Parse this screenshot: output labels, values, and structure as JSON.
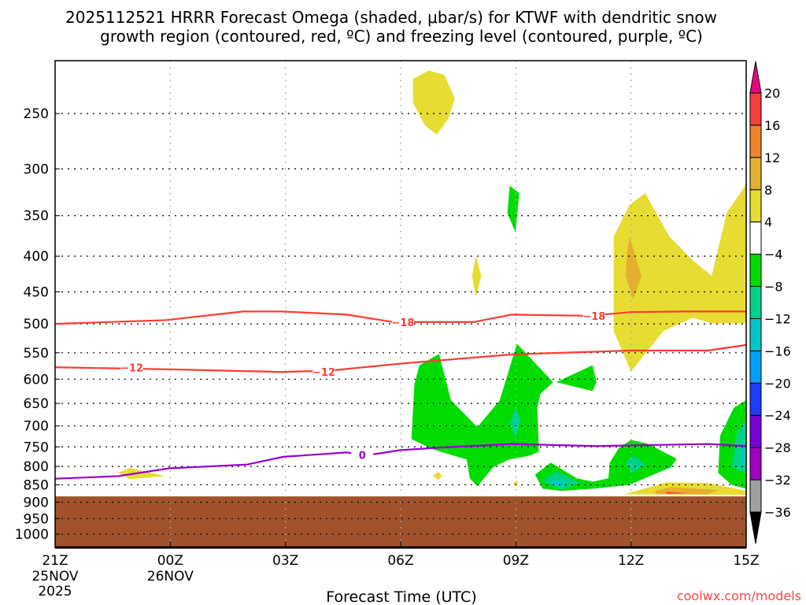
{
  "chart_data": {
    "type": "heatmap",
    "title_lines": [
      "2025112521 HRRR Forecast Omega (shaded, μbar/s) for KTWF with dendritic snow",
      "growth region (contoured, red, ºC) and freezing level (contoured, purple, ºC)"
    ],
    "xlabel": "Forecast Time (UTC)",
    "x_units": "hours since 21Z 25NOV 2025",
    "xlim": [
      0,
      18
    ],
    "x_ticks": [
      {
        "h": 0,
        "label": "21Z",
        "sub": [
          "25NOV",
          "2025"
        ]
      },
      {
        "h": 3,
        "label": "00Z",
        "sub": [
          "26NOV"
        ]
      },
      {
        "h": 6,
        "label": "03Z",
        "sub": []
      },
      {
        "h": 9,
        "label": "06Z",
        "sub": []
      },
      {
        "h": 12,
        "label": "09Z",
        "sub": []
      },
      {
        "h": 15,
        "label": "12Z",
        "sub": []
      },
      {
        "h": 18,
        "label": "15Z",
        "sub": []
      }
    ],
    "y_units": "hPa",
    "ylim": [
      210,
      1045
    ],
    "y_scale": "log",
    "y_ticks": [
      250,
      300,
      350,
      400,
      450,
      500,
      550,
      600,
      650,
      700,
      750,
      800,
      850,
      900,
      950,
      1000
    ],
    "grid": true,
    "surface_pressure": 883,
    "colorbar": {
      "levels": [
        "-36",
        "-32",
        "-28",
        "-24",
        "-20",
        "-16",
        "-12",
        "-8",
        "-4",
        "4",
        "8",
        "12",
        "16",
        "20"
      ],
      "colors": [
        "#a0a0a0",
        "#a000c0",
        "#7800d8",
        "#1e3cff",
        "#00a0ff",
        "#00c8c8",
        "#00d28c",
        "#00dc00",
        "#ffffff",
        "#e6dc32",
        "#e6af2d",
        "#f08228",
        "#fa3c3c"
      ],
      "under_color": "#000000",
      "over_color": "#f00082"
    },
    "shaded_regions": [
      {
        "value_range": "4 to 8",
        "color": "#e6dc32",
        "points": [
          [
            9.32,
            223
          ],
          [
            9.73,
            217
          ],
          [
            10.14,
            220
          ],
          [
            10.41,
            238
          ],
          [
            10.25,
            254
          ],
          [
            9.94,
            268
          ],
          [
            9.63,
            260
          ],
          [
            9.32,
            241
          ]
        ]
      },
      {
        "value_range": "4 to 8",
        "color": "#e6dc32",
        "points": [
          [
            14.55,
            375
          ],
          [
            14.96,
            338
          ],
          [
            15.37,
            325
          ],
          [
            16.0,
            375
          ],
          [
            16.6,
            405
          ],
          [
            17.1,
            427
          ],
          [
            17.5,
            346
          ],
          [
            18,
            316
          ],
          [
            18,
            499
          ],
          [
            17.1,
            499
          ],
          [
            16.6,
            490
          ],
          [
            15.84,
            512
          ],
          [
            15.0,
            585
          ],
          [
            14.55,
            512
          ]
        ]
      },
      {
        "value_range": "8 to 12",
        "color": "#e6af2d",
        "points": [
          [
            14.9,
            394
          ],
          [
            14.96,
            375
          ],
          [
            15.27,
            427
          ],
          [
            15.06,
            461
          ],
          [
            14.86,
            427
          ]
        ]
      },
      {
        "value_range": "4 to 8",
        "color": "#e6dc32",
        "points": [
          [
            10.96,
            400
          ],
          [
            11.1,
            427
          ],
          [
            10.96,
            458
          ],
          [
            10.86,
            427
          ]
        ]
      },
      {
        "value_range": "-8 to -4",
        "color": "#00dc00",
        "points": [
          [
            11.84,
            317
          ],
          [
            12.09,
            325
          ],
          [
            11.99,
            370
          ],
          [
            11.78,
            347
          ]
        ]
      },
      {
        "value_range": "-8 to -4",
        "color": "#00dc00",
        "points": [
          [
            9.28,
            731
          ],
          [
            9.36,
            609
          ],
          [
            9.49,
            573
          ],
          [
            10.0,
            552
          ],
          [
            10.31,
            643
          ],
          [
            11.0,
            703
          ],
          [
            11.58,
            643
          ],
          [
            12.03,
            534
          ],
          [
            12.97,
            606
          ],
          [
            12.64,
            630
          ],
          [
            12.56,
            659
          ],
          [
            12.6,
            762
          ],
          [
            12.36,
            772
          ],
          [
            11.82,
            782
          ],
          [
            11.41,
            802
          ],
          [
            11.0,
            854
          ],
          [
            10.8,
            832
          ],
          [
            10.72,
            782
          ],
          [
            9.84,
            756
          ]
        ]
      },
      {
        "value_range": "-8 to -4",
        "color": "#00dc00",
        "points": [
          [
            13.05,
            606
          ],
          [
            14.0,
            573
          ],
          [
            14.1,
            606
          ],
          [
            14.0,
            624
          ]
        ]
      },
      {
        "value_range": "-12 to -8",
        "color": "#00d28c",
        "points": [
          [
            11.99,
            659
          ],
          [
            12.13,
            687
          ],
          [
            11.99,
            727
          ],
          [
            11.84,
            694
          ]
        ]
      },
      {
        "value_range": "-8 to -4",
        "color": "#00dc00",
        "points": [
          [
            12.5,
            822
          ],
          [
            12.91,
            790
          ],
          [
            13.59,
            832
          ],
          [
            14.0,
            841
          ],
          [
            14.41,
            832
          ],
          [
            14.45,
            790
          ],
          [
            14.69,
            752
          ],
          [
            15.0,
            733
          ],
          [
            15.43,
            742
          ],
          [
            16.19,
            780
          ],
          [
            16.04,
            802
          ],
          [
            14.96,
            850
          ],
          [
            14.0,
            861
          ],
          [
            13.18,
            867
          ],
          [
            12.7,
            861
          ]
        ]
      },
      {
        "value_range": "-12 to -8",
        "color": "#00d28c",
        "points": [
          [
            12.7,
            838
          ],
          [
            13.05,
            813
          ],
          [
            13.67,
            845
          ],
          [
            13.18,
            865
          ]
        ]
      },
      {
        "value_range": "-16 to -12",
        "color": "#00c8c8",
        "points": [
          [
            12.85,
            845
          ],
          [
            13.1,
            836
          ],
          [
            13.3,
            848
          ],
          [
            13.05,
            856
          ]
        ]
      },
      {
        "value_range": "-12 to -8",
        "color": "#00d28c",
        "points": [
          [
            14.86,
            790
          ],
          [
            15.06,
            772
          ],
          [
            15.37,
            796
          ],
          [
            15.02,
            817
          ]
        ]
      },
      {
        "value_range": "-8 to -4",
        "color": "#00dc00",
        "points": [
          [
            17.27,
            817
          ],
          [
            17.32,
            723
          ],
          [
            17.68,
            659
          ],
          [
            18,
            643
          ],
          [
            18,
            861
          ],
          [
            17.62,
            850
          ]
        ]
      },
      {
        "value_range": "-12 to -8",
        "color": "#00d28c",
        "points": [
          [
            17.62,
            802
          ],
          [
            17.77,
            712
          ],
          [
            18,
            687
          ],
          [
            18,
            817
          ]
        ]
      },
      {
        "value_range": "-16 to -12",
        "color": "#00c8c8",
        "points": [
          [
            17.9,
            760
          ],
          [
            18,
            740
          ],
          [
            18,
            800
          ],
          [
            17.9,
            795
          ]
        ]
      },
      {
        "value_range": "4 to 8",
        "color": "#e6dc32",
        "points": [
          [
            14.82,
            877
          ],
          [
            15.92,
            843
          ],
          [
            17.01,
            845
          ],
          [
            18,
            867
          ],
          [
            18,
            879
          ]
        ]
      },
      {
        "value_range": "8 to 12",
        "color": "#e6af2d",
        "points": [
          [
            15.64,
            867
          ],
          [
            16.04,
            856
          ],
          [
            17.27,
            865
          ],
          [
            17.0,
            877
          ],
          [
            15.64,
            877
          ]
        ]
      },
      {
        "value_range": "16 to 20",
        "color": "#fa3c3c",
        "points": [
          [
            15.92,
            870
          ],
          [
            16.54,
            874
          ],
          [
            15.92,
            875
          ]
        ]
      },
      {
        "value_range": "4 to 8",
        "color": "#e6dc32",
        "points": [
          [
            9.84,
            824
          ],
          [
            9.98,
            815
          ],
          [
            10.08,
            824
          ],
          [
            9.98,
            837
          ]
        ]
      },
      {
        "value_range": "4 to 8",
        "color": "#e6dc32",
        "points": [
          [
            11.93,
            845
          ],
          [
            12.05,
            838
          ],
          [
            12.03,
            856
          ]
        ]
      },
      {
        "value_range": "4 to 8",
        "color": "#e6dc32",
        "points": [
          [
            1.64,
            817
          ],
          [
            1.95,
            804
          ],
          [
            2.87,
            826
          ],
          [
            1.95,
            834
          ]
        ]
      }
    ],
    "contours": [
      {
        "name": "-18 C isotherm",
        "color": "#ff3b30",
        "points": [
          [
            0,
            500
          ],
          [
            2.87,
            494
          ],
          [
            4.9,
            480
          ],
          [
            5.9,
            480
          ],
          [
            7.6,
            485
          ],
          [
            8.8,
            497
          ],
          [
            10.9,
            497
          ],
          [
            11.9,
            485
          ],
          [
            13.9,
            487
          ],
          [
            15,
            481
          ],
          [
            16.4,
            480
          ],
          [
            18,
            480
          ]
        ],
        "labels": [
          {
            "text": "-18",
            "h": 9.06,
            "p": 497
          },
          {
            "text": "-18",
            "h": 14.04,
            "p": 487
          }
        ]
      },
      {
        "name": "-12 C isotherm",
        "color": "#ff3b30",
        "points": [
          [
            0,
            577
          ],
          [
            3.07,
            581
          ],
          [
            5.94,
            586
          ],
          [
            7.2,
            583
          ],
          [
            9.0,
            570
          ],
          [
            11.9,
            553
          ],
          [
            15,
            546
          ],
          [
            17,
            546
          ],
          [
            18,
            536
          ]
        ],
        "labels": [
          {
            "text": "-12",
            "h": 2.0,
            "p": 577
          },
          {
            "text": "-12",
            "h": 7.0,
            "p": 586
          }
        ]
      },
      {
        "name": "0 C freezing level",
        "color": "#9900cc",
        "points": [
          [
            0,
            833
          ],
          [
            1.64,
            826
          ],
          [
            2.97,
            805
          ],
          [
            5.0,
            795
          ],
          [
            5.94,
            775
          ],
          [
            7.58,
            764
          ],
          [
            8.2,
            770
          ],
          [
            9.0,
            758
          ],
          [
            10.0,
            752
          ],
          [
            11.9,
            743
          ],
          [
            14.1,
            748
          ],
          [
            17,
            743
          ],
          [
            18,
            748
          ]
        ],
        "labels": [
          {
            "text": "0",
            "h": 8.0,
            "p": 770
          }
        ]
      }
    ]
  },
  "credit": "coolwx.com/models"
}
